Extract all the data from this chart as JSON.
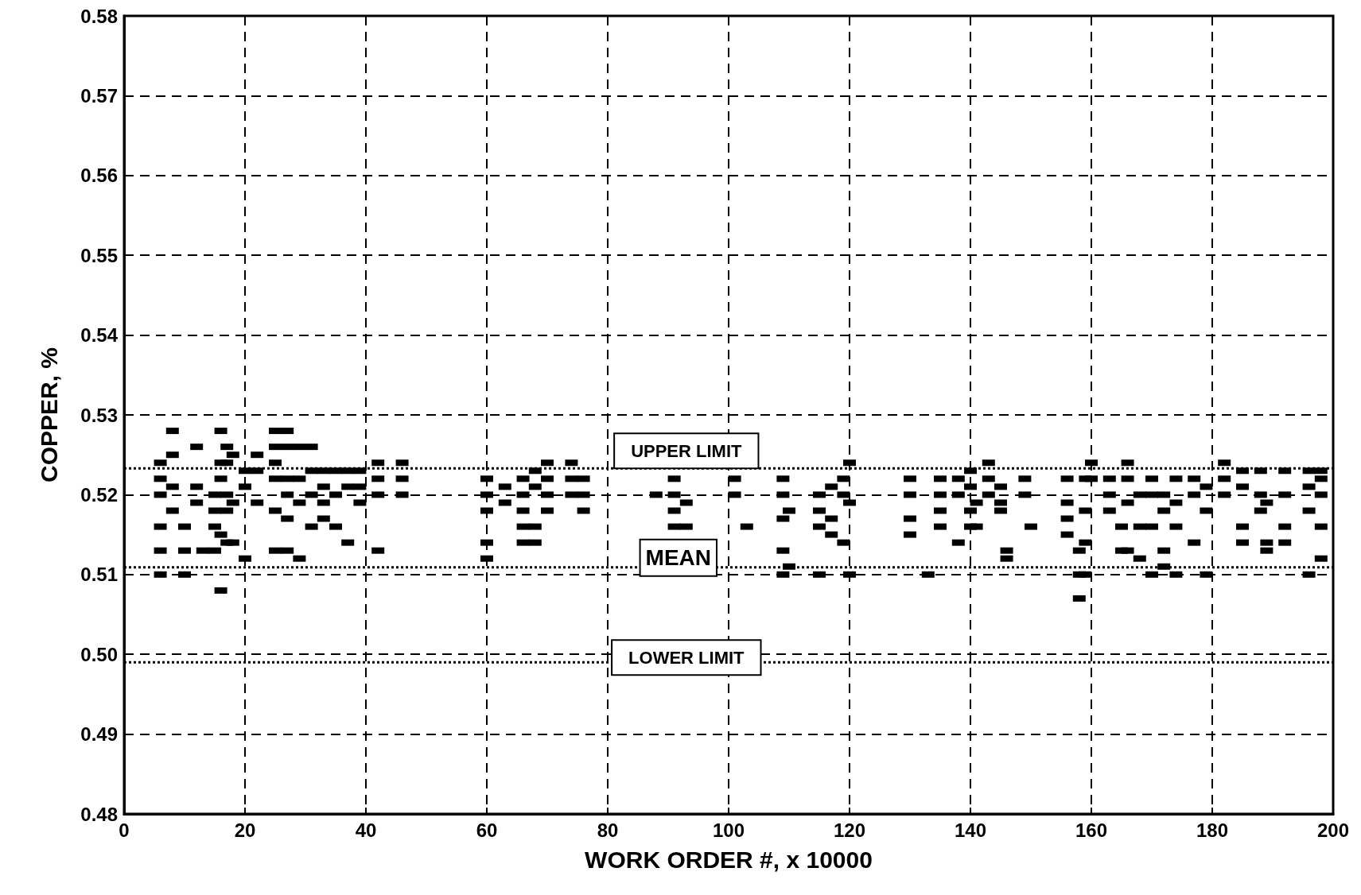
{
  "chart_data": {
    "type": "scatter",
    "xlabel": "WORK ORDER #, x 10000",
    "ylabel": "COPPER, %",
    "xlim": [
      0,
      200
    ],
    "xticks": [
      0,
      20,
      40,
      60,
      80,
      100,
      120,
      140,
      160,
      180,
      200
    ],
    "ylim": [
      0.48,
      0.58
    ],
    "yticks": [
      0.48,
      0.49,
      {
        "value": 0.5,
        "label": "0.50"
      },
      0.51,
      0.52,
      0.53,
      0.54,
      0.55,
      0.56,
      0.57,
      0.58
    ],
    "grid": true,
    "marker": "square",
    "ref_lines": [
      {
        "axis": "y",
        "value": 0.5233,
        "label": "UPPER LIMIT",
        "color": "#000000",
        "line_style": "dotted"
      },
      {
        "axis": "y",
        "value": 0.5109,
        "label": "MEAN",
        "color": "#000000",
        "line_style": "dotted"
      },
      {
        "axis": "y",
        "value": 0.499,
        "label": "LOWER LIMIT",
        "color": "#000000",
        "line_style": "dotted"
      }
    ],
    "series": [
      {
        "color": "#000000",
        "x": [
          6,
          6,
          6,
          6,
          6,
          6,
          8,
          8,
          8,
          8,
          10,
          10,
          10,
          12,
          12,
          12,
          13,
          15,
          15,
          15,
          15,
          16,
          16,
          16,
          16,
          16,
          17,
          17,
          17,
          17,
          17,
          18,
          18,
          18,
          20,
          20,
          20,
          22,
          22,
          22,
          25,
          25,
          25,
          25,
          25,
          25,
          27,
          27,
          27,
          27,
          27,
          27,
          29,
          29,
          29,
          29,
          31,
          31,
          31,
          31,
          33,
          33,
          33,
          33,
          35,
          35,
          35,
          37,
          37,
          37,
          39,
          39,
          39,
          42,
          42,
          42,
          42,
          46,
          46,
          46,
          60,
          60,
          60,
          60,
          60,
          63,
          63,
          66,
          66,
          66,
          66,
          66,
          68,
          68,
          68,
          68,
          70,
          70,
          70,
          70,
          74,
          74,
          74,
          76,
          76,
          76,
          88,
          91,
          91,
          91,
          91,
          93,
          93,
          101,
          101,
          103,
          109,
          109,
          109,
          109,
          109,
          110,
          110,
          115,
          115,
          115,
          115,
          117,
          117,
          117,
          119,
          119,
          119,
          120,
          120,
          120,
          130,
          130,
          130,
          130,
          133,
          135,
          135,
          135,
          135,
          138,
          138,
          138,
          140,
          140,
          140,
          140,
          141,
          141,
          143,
          143,
          143,
          145,
          145,
          145,
          146,
          146,
          149,
          149,
          150,
          156,
          156,
          156,
          156,
          158,
          158,
          158,
          159,
          159,
          159,
          159,
          160,
          160,
          163,
          163,
          163,
          165,
          165,
          166,
          166,
          166,
          166,
          168,
          168,
          168,
          170,
          170,
          170,
          170,
          172,
          172,
          172,
          172,
          174,
          174,
          174,
          174,
          177,
          177,
          177,
          179,
          179,
          179,
          182,
          182,
          182,
          185,
          185,
          185,
          185,
          188,
          188,
          188,
          189,
          189,
          189,
          192,
          192,
          192,
          192,
          196,
          196,
          196,
          196,
          198,
          198,
          198,
          198,
          198
        ],
        "values": [
          0.51,
          0.513,
          0.516,
          0.52,
          0.522,
          0.524,
          0.528,
          0.525,
          0.521,
          0.518,
          0.513,
          0.51,
          0.516,
          0.526,
          0.521,
          0.519,
          0.513,
          0.52,
          0.518,
          0.516,
          0.513,
          0.508,
          0.528,
          0.522,
          0.524,
          0.515,
          0.526,
          0.524,
          0.52,
          0.518,
          0.514,
          0.514,
          0.525,
          0.519,
          0.512,
          0.523,
          0.521,
          0.523,
          0.525,
          0.519,
          0.528,
          0.526,
          0.524,
          0.522,
          0.518,
          0.513,
          0.528,
          0.526,
          0.522,
          0.52,
          0.517,
          0.513,
          0.526,
          0.522,
          0.519,
          0.512,
          0.526,
          0.523,
          0.52,
          0.516,
          0.523,
          0.521,
          0.519,
          0.517,
          0.523,
          0.52,
          0.516,
          0.523,
          0.521,
          0.514,
          0.523,
          0.521,
          0.519,
          0.524,
          0.522,
          0.52,
          0.513,
          0.524,
          0.522,
          0.52,
          0.522,
          0.52,
          0.518,
          0.514,
          0.512,
          0.521,
          0.519,
          0.522,
          0.52,
          0.518,
          0.516,
          0.514,
          0.523,
          0.521,
          0.516,
          0.514,
          0.524,
          0.522,
          0.52,
          0.518,
          0.524,
          0.522,
          0.52,
          0.522,
          0.52,
          0.518,
          0.52,
          0.522,
          0.52,
          0.518,
          0.516,
          0.519,
          0.516,
          0.522,
          0.52,
          0.516,
          0.522,
          0.52,
          0.517,
          0.513,
          0.51,
          0.518,
          0.511,
          0.52,
          0.518,
          0.516,
          0.51,
          0.521,
          0.517,
          0.515,
          0.522,
          0.52,
          0.514,
          0.524,
          0.519,
          0.51,
          0.522,
          0.52,
          0.517,
          0.515,
          0.51,
          0.522,
          0.52,
          0.518,
          0.516,
          0.522,
          0.52,
          0.514,
          0.523,
          0.521,
          0.518,
          0.516,
          0.519,
          0.516,
          0.524,
          0.522,
          0.52,
          0.521,
          0.519,
          0.518,
          0.513,
          0.512,
          0.522,
          0.52,
          0.516,
          0.522,
          0.519,
          0.517,
          0.515,
          0.513,
          0.51,
          0.507,
          0.522,
          0.518,
          0.514,
          0.51,
          0.524,
          0.522,
          0.522,
          0.52,
          0.518,
          0.516,
          0.513,
          0.524,
          0.522,
          0.519,
          0.513,
          0.52,
          0.516,
          0.512,
          0.522,
          0.52,
          0.516,
          0.51,
          0.52,
          0.518,
          0.513,
          0.511,
          0.522,
          0.519,
          0.516,
          0.51,
          0.522,
          0.52,
          0.514,
          0.521,
          0.518,
          0.51,
          0.524,
          0.522,
          0.52,
          0.523,
          0.521,
          0.516,
          0.514,
          0.523,
          0.52,
          0.518,
          0.519,
          0.514,
          0.513,
          0.523,
          0.52,
          0.516,
          0.514,
          0.523,
          0.521,
          0.518,
          0.51,
          0.523,
          0.522,
          0.52,
          0.516,
          0.512
        ]
      }
    ]
  }
}
